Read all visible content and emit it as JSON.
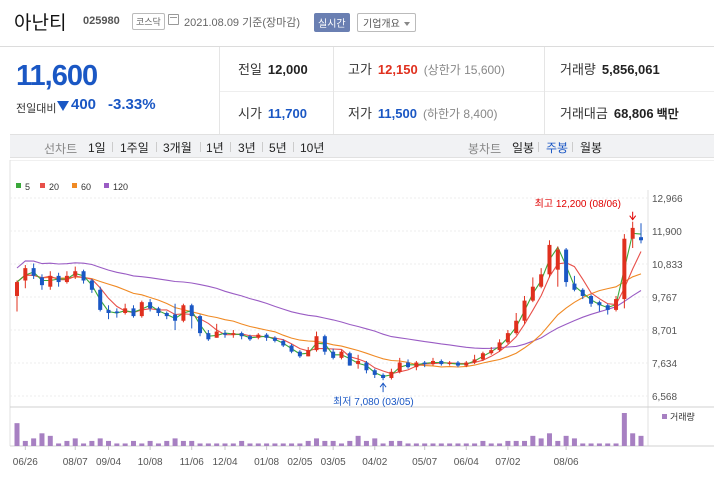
{
  "header": {
    "stock_name": "아난티",
    "stock_code": "025980",
    "market": "코스닥",
    "date_text": "2021.08.09  기준(장마감)",
    "realtime_label": "실시간",
    "overview_label": "기업개요"
  },
  "summary": {
    "current_price": "11,600",
    "change_label": "전일대비",
    "change_amount": "400",
    "change_pct": "-3.33%",
    "stats": {
      "prev_close": {
        "label": "전일",
        "value": "12,000"
      },
      "open": {
        "label": "시가",
        "value": "11,700"
      },
      "high": {
        "label": "고가",
        "value": "12,150",
        "sub": "(상한가 15,600)"
      },
      "low": {
        "label": "저가",
        "value": "11,500",
        "sub": "(하한가 8,400)"
      },
      "volume": {
        "label": "거래량",
        "value": "5,856,061"
      },
      "amount": {
        "label": "거래대금",
        "value": "68,806",
        "unit": "백만"
      }
    }
  },
  "period_bar": {
    "line_label": "선차트",
    "line_items": [
      "1일",
      "1주일",
      "3개월",
      "1년",
      "3년",
      "5년",
      "10년"
    ],
    "candle_label": "봉차트",
    "candle_items": [
      "일봉",
      "주봉",
      "월봉"
    ],
    "candle_active": "주봉"
  },
  "colors": {
    "up": "#e0301e",
    "down": "#1a57c4",
    "ma5": "#3aa83a",
    "ma20": "#e8504a",
    "ma60": "#f08a24",
    "ma120": "#9a5cc4",
    "volume": "#a780c2",
    "annotation": "#e00000"
  },
  "chart_data": {
    "type": "candlestick",
    "interval": "weekly",
    "legend": [
      {
        "name": "5",
        "color": "#3aa83a"
      },
      {
        "name": "20",
        "color": "#e8504a"
      },
      {
        "name": "60",
        "color": "#f08a24"
      },
      {
        "name": "120",
        "color": "#9a5cc4"
      }
    ],
    "y_ticks": [
      "12,966",
      "11,900",
      "10,833",
      "9,767",
      "8,701",
      "7,634",
      "6,568"
    ],
    "ylim": [
      6568,
      12966
    ],
    "x_ticks": [
      "06/26",
      "08/07",
      "09/04",
      "10/08",
      "11/06",
      "12/04",
      "01/08",
      "02/05",
      "03/05",
      "04/02",
      "05/07",
      "06/04",
      "07/02",
      "08/06"
    ],
    "high_label": "최고 12,200 (08/06)",
    "low_label": "최저 7,080 (03/05)",
    "volume_label": "거래량",
    "candles": [
      [
        9800,
        10250,
        10300,
        9300
      ],
      [
        10300,
        10700,
        10800,
        10050
      ],
      [
        10700,
        10450,
        10850,
        10350
      ],
      [
        10400,
        10150,
        10500,
        10000
      ],
      [
        10100,
        10450,
        10600,
        10000
      ],
      [
        10450,
        10250,
        10550,
        10100
      ],
      [
        10250,
        10450,
        10600,
        10200
      ],
      [
        10450,
        10600,
        10750,
        10350
      ],
      [
        10600,
        10300,
        10650,
        10200
      ],
      [
        10300,
        10000,
        10350,
        9900
      ],
      [
        10000,
        9350,
        10100,
        9300
      ],
      [
        9350,
        9250,
        9500,
        9050
      ],
      [
        9300,
        9250,
        9400,
        9100
      ],
      [
        9250,
        9400,
        9550,
        9200
      ],
      [
        9400,
        9150,
        9500,
        9100
      ],
      [
        9150,
        9600,
        9650,
        9100
      ],
      [
        9600,
        9400,
        9700,
        9300
      ],
      [
        9400,
        9250,
        9450,
        9150
      ],
      [
        9250,
        9150,
        9300,
        9050
      ],
      [
        9200,
        9000,
        9550,
        8700
      ],
      [
        9000,
        9500,
        9550,
        8950
      ],
      [
        9500,
        9150,
        9550,
        8750
      ],
      [
        9150,
        8600,
        9200,
        8500
      ],
      [
        8600,
        8400,
        8700,
        8350
      ],
      [
        8450,
        8650,
        8900,
        8450
      ],
      [
        8600,
        8550,
        8700,
        8450
      ],
      [
        8550,
        8600,
        8700,
        8450
      ],
      [
        8600,
        8500,
        8650,
        8400
      ],
      [
        8500,
        8400,
        8550,
        8350
      ],
      [
        8450,
        8550,
        8600,
        8400
      ],
      [
        8550,
        8450,
        8600,
        8350
      ],
      [
        8450,
        8350,
        8500,
        8300
      ],
      [
        8350,
        8200,
        8400,
        8150
      ],
      [
        8200,
        8000,
        8250,
        7950
      ],
      [
        8000,
        7850,
        8050,
        7800
      ],
      [
        7850,
        8050,
        8150,
        7850
      ],
      [
        8050,
        8500,
        8650,
        8000
      ],
      [
        8500,
        8000,
        8550,
        7900
      ],
      [
        8000,
        7800,
        8100,
        7750
      ],
      [
        7800,
        8000,
        8050,
        7750
      ],
      [
        7950,
        7550,
        8000,
        7550
      ],
      [
        7600,
        7700,
        7900,
        7450
      ],
      [
        7650,
        7400,
        7700,
        7300
      ],
      [
        7400,
        7250,
        7450,
        7150
      ],
      [
        7250,
        7150,
        7300,
        7080
      ],
      [
        7150,
        7350,
        7450,
        7100
      ],
      [
        7350,
        7650,
        7800,
        7300
      ],
      [
        7650,
        7500,
        7750,
        7450
      ],
      [
        7500,
        7650,
        7700,
        7400
      ],
      [
        7650,
        7600,
        7700,
        7500
      ],
      [
        7600,
        7700,
        7800,
        7550
      ],
      [
        7700,
        7600,
        7750,
        7550
      ],
      [
        7600,
        7650,
        7700,
        7550
      ],
      [
        7650,
        7550,
        7700,
        7500
      ],
      [
        7550,
        7650,
        7700,
        7500
      ],
      [
        7650,
        7750,
        7900,
        7600
      ],
      [
        7750,
        7950,
        8000,
        7700
      ],
      [
        7950,
        8050,
        8150,
        7900
      ],
      [
        8050,
        8300,
        8400,
        8000
      ],
      [
        8300,
        8600,
        8700,
        8250
      ],
      [
        8600,
        9000,
        9250,
        8550
      ],
      [
        9000,
        9650,
        9800,
        8900
      ],
      [
        9650,
        10100,
        10400,
        9600
      ],
      [
        10100,
        10500,
        10700,
        10050
      ],
      [
        10500,
        11450,
        11600,
        10400
      ],
      [
        10650,
        11300,
        11400,
        10100
      ],
      [
        11300,
        10250,
        11350,
        10100
      ],
      [
        10200,
        10000,
        10450,
        9950
      ],
      [
        10000,
        9800,
        10050,
        9700
      ],
      [
        9800,
        9550,
        9850,
        9450
      ],
      [
        9600,
        9500,
        9650,
        9300
      ],
      [
        9500,
        9350,
        9550,
        9200
      ],
      [
        9350,
        9700,
        9800,
        9300
      ],
      [
        9700,
        11650,
        11800,
        9400
      ],
      [
        11650,
        12000,
        12200,
        11350
      ],
      [
        11700,
        11600,
        12150,
        11500
      ]
    ],
    "volumes": [
      9,
      2,
      3,
      5,
      4,
      1,
      2,
      3,
      1,
      2,
      3,
      2,
      1,
      1,
      2,
      1,
      2,
      1,
      2,
      3,
      2,
      2,
      1,
      1,
      1,
      1,
      1,
      2,
      1,
      1,
      1,
      1,
      1,
      1,
      1,
      2,
      3,
      2,
      2,
      1,
      2,
      4,
      2,
      3,
      1,
      2,
      2,
      1,
      1,
      1,
      1,
      1,
      1,
      1,
      1,
      1,
      2,
      1,
      1,
      2,
      2,
      2,
      4,
      3,
      5,
      2,
      4,
      3,
      1,
      1,
      1,
      1,
      1,
      13,
      5,
      4
    ]
  }
}
